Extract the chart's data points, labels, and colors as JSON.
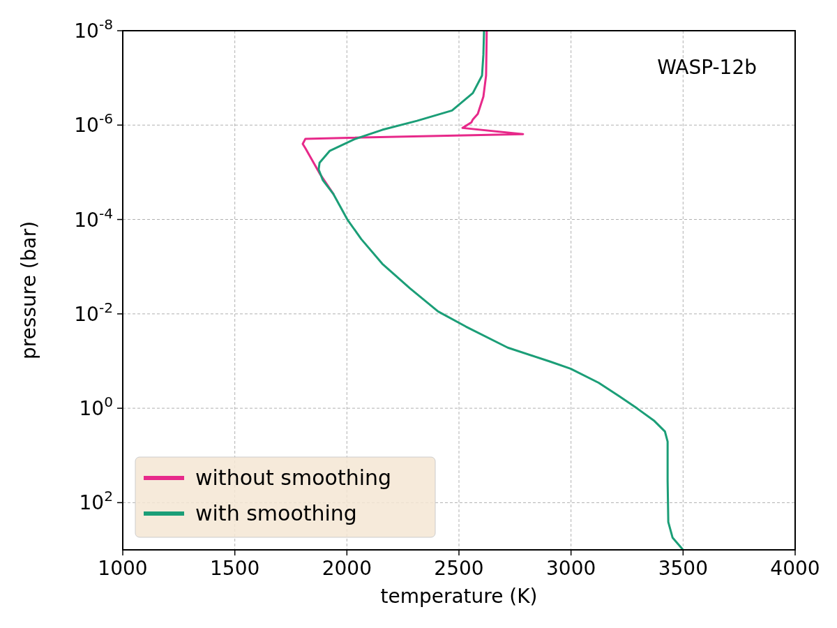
{
  "chart_data": {
    "type": "line",
    "xlabel": "temperature (K)",
    "ylabel": "pressure (bar)",
    "annotations": [
      "WASP-12b"
    ],
    "xlim": [
      1000,
      4000
    ],
    "xticks": [
      1000,
      1500,
      2000,
      2500,
      3000,
      3500,
      4000
    ],
    "ylim": [
      1000,
      1e-08
    ],
    "yticks": [
      {
        "value": 1e-08,
        "label": "10$^{-8}$"
      },
      {
        "value": 1e-06,
        "label": "10$^{-6}$"
      },
      {
        "value": 0.0001,
        "label": "10$^{-4}$"
      },
      {
        "value": 0.01,
        "label": "10$^{-2}$"
      },
      {
        "value": 1,
        "label": "10$^{0}$"
      },
      {
        "value": 100,
        "label": "10$^{2}$"
      }
    ],
    "log": "y",
    "grid": true,
    "legend": "bottom left",
    "line_style": "solid",
    "series": [
      {
        "name": "without smoothing",
        "color": "#e7298a",
        "x": [
          2624,
          2621,
          2609,
          2584,
          2562,
          2556,
          2516,
          2786,
          1815,
          1803,
          1815,
          1878,
          1940
        ],
        "values": [
          1e-08,
          8.9e-08,
          2.5e-07,
          5.8e-07,
          7.6e-07,
          8.7e-07,
          1.15e-06,
          1.55e-06,
          1.95e-06,
          2.5e-06,
          3.1e-06,
          1.05e-05,
          2.9e-05
        ]
      },
      {
        "name": "with smoothing",
        "color": "#1b9e77",
        "x": [
          2612,
          2609,
          2603,
          2562,
          2469,
          2313,
          2158,
          2033,
          1924,
          1878,
          1874,
          1893,
          1940,
          2002,
          2064,
          2158,
          2282,
          2407,
          2531,
          2718,
          2905,
          2998,
          3123,
          3216,
          3294,
          3372,
          3419,
          3431,
          3431,
          3434,
          3453,
          3500
        ],
        "values": [
          1e-08,
          3.2e-08,
          8.9e-08,
          2.1e-07,
          4.9e-07,
          8.1e-07,
          1.26e-06,
          2e-06,
          3.5e-06,
          6.3e-06,
          8.7e-06,
          1.48e-05,
          2.9e-05,
          0.0001,
          0.00026,
          0.00087,
          0.0029,
          0.0089,
          0.0186,
          0.052,
          0.102,
          0.145,
          0.288,
          0.56,
          1,
          1.86,
          3.1,
          5.1,
          34,
          257,
          550,
          1000
        ]
      }
    ]
  }
}
